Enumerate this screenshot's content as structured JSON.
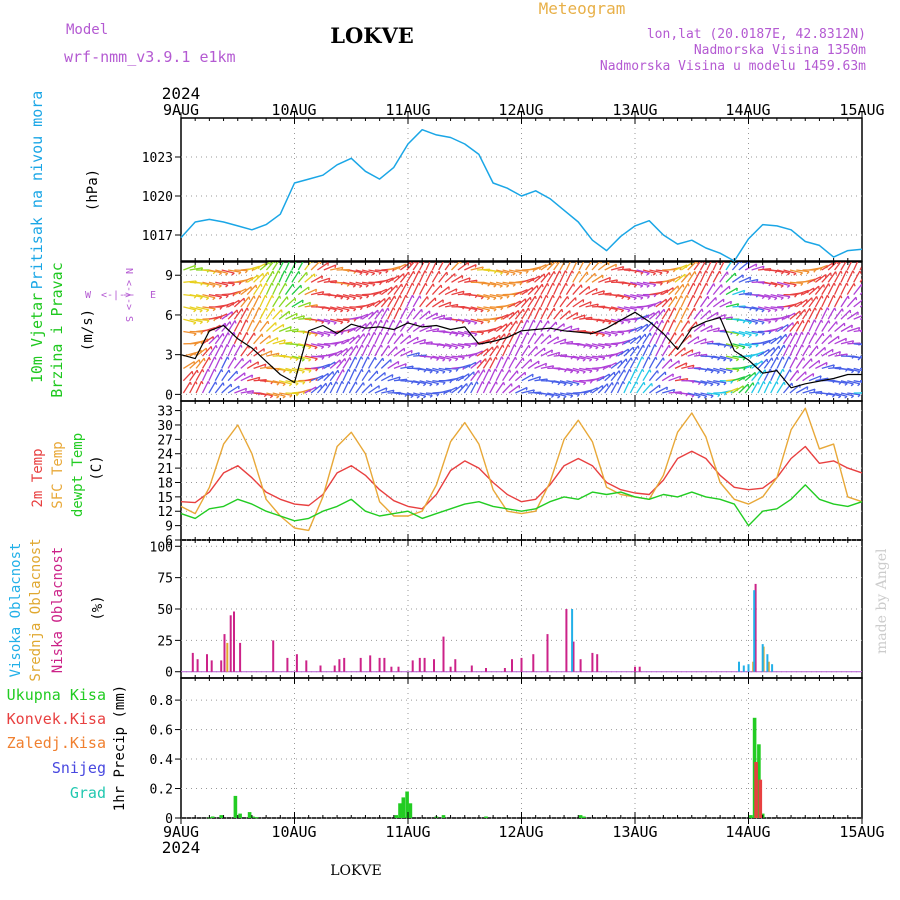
{
  "header": {
    "model_label": "Model",
    "model_name": "wrf-nmm_v3.9.1 e1km",
    "location": "LOKVE",
    "meteogram_label": "Meteogram",
    "lonlat": "lon,lat (20.0187E, 42.8312N)",
    "altitude": "Nadmorska Visina 1350m",
    "model_altitude": "Nadmorska Visina u modelu 1459.63m",
    "year": "2024",
    "footer_location": "LOKVE",
    "credit": "made by Angel"
  },
  "colors": {
    "pressure": "#1aa6e6",
    "wind_label": "#1ec81e",
    "compass": "#b45ad2",
    "temp2m": "#e84040",
    "sfc_temp": "#e8a838",
    "dewpoint": "#22cc22",
    "cloud_high": "#22b0e8",
    "cloud_mid": "#e0a830",
    "cloud_low": "#cc2288",
    "precip_total": "#22cc22",
    "precip_conv": "#e84040",
    "precip_freezing": "#f08030",
    "precip_snow": "#4848e0",
    "precip_hail": "#22c8b0",
    "header_purple": "#b45ad2",
    "meteogram_orange": "#e8b048",
    "credit_grey": "#cccccc"
  },
  "time_axis": {
    "top_labels": [
      "9AUG",
      "10AUG",
      "11AUG",
      "12AUG",
      "13AUG",
      "14AUG",
      "15AUG"
    ],
    "bottom_labels": [
      "9AUG",
      "10AUG",
      "11AUG",
      "12AUG",
      "13AUG",
      "14AUG",
      "15AUG"
    ]
  },
  "panels": {
    "pressure": {
      "label": "Pritisak na nivou mora",
      "unit": "(hPa)",
      "ticks": [
        "1017",
        "1020",
        "1023"
      ]
    },
    "wind": {
      "label1": "10m Vjetar",
      "label2": "Brzina i Pravac",
      "unit": "(m/s)",
      "ticks": [
        "0",
        "3",
        "6",
        "9"
      ],
      "compass_n": "N",
      "compass_s": "S",
      "compass_w": "W",
      "compass_e": "E",
      "compass_ns": "<-|->",
      "compass_we": "<-|->"
    },
    "temperature": {
      "label1": "2m Temp",
      "label2": "SFC Temp",
      "label3": "dewpt Temp",
      "unit": "(C)",
      "ticks": [
        "6",
        "9",
        "12",
        "15",
        "18",
        "21",
        "24",
        "27",
        "30",
        "33"
      ]
    },
    "clouds": {
      "label1": "Visoka Oblacnost",
      "label2": "Srednja Oblacnost",
      "label3": "Niska Oblacnost",
      "unit": "(%)",
      "ticks": [
        "0",
        "25",
        "50",
        "75",
        "100"
      ]
    },
    "precip": {
      "legend": [
        "Ukupna Kisa",
        "Konvek.Kisa",
        "Zaledj.Kisa",
        "Snijeg",
        "Grad"
      ],
      "axis_label": "1hr Precip (mm)",
      "ticks": [
        "0",
        "0.2",
        "0.4",
        "0.6",
        "0.8"
      ]
    }
  },
  "chart_data": [
    {
      "type": "line",
      "title": "Pritisak na nivou mora",
      "ylabel": "(hPa)",
      "x_hours": [
        0,
        3,
        6,
        9,
        12,
        15,
        18,
        21,
        24,
        27,
        30,
        33,
        36,
        39,
        42,
        45,
        48,
        51,
        54,
        57,
        60,
        63,
        66,
        69,
        72,
        75,
        78,
        81,
        84,
        87,
        90,
        93,
        96,
        99,
        102,
        105,
        108,
        111,
        114,
        117,
        120,
        123,
        126,
        129,
        132,
        135,
        138,
        141,
        144
      ],
      "ylim": [
        1015,
        1026
      ],
      "series": [
        {
          "values": [
            1016.8,
            1018.0,
            1018.2,
            1018.0,
            1017.7,
            1017.4,
            1017.8,
            1018.6,
            1021.0,
            1021.3,
            1021.6,
            1022.4,
            1022.9,
            1021.9,
            1021.3,
            1022.2,
            1024.0,
            1025.1,
            1024.7,
            1024.5,
            1024.0,
            1023.2,
            1021.0,
            1020.6,
            1020.0,
            1020.4,
            1019.8,
            1018.9,
            1018.0,
            1016.6,
            1015.8,
            1016.9,
            1017.7,
            1018.1,
            1017.0,
            1016.3,
            1016.6,
            1016.0,
            1015.6,
            1015.0,
            1016.7,
            1017.8,
            1017.7,
            1017.4,
            1016.5,
            1016.2,
            1015.3,
            1015.8,
            1015.9
          ]
        }
      ]
    },
    {
      "type": "line",
      "title": "10m Vjetar Brzina i Pravac",
      "ylabel": "(m/s)",
      "x_hours": [
        0,
        3,
        6,
        9,
        12,
        15,
        18,
        21,
        24,
        27,
        30,
        33,
        36,
        39,
        42,
        45,
        48,
        51,
        54,
        57,
        60,
        63,
        66,
        69,
        72,
        75,
        78,
        81,
        84,
        87,
        90,
        93,
        96,
        99,
        102,
        105,
        108,
        111,
        114,
        117,
        120,
        123,
        126,
        129,
        132,
        135,
        138,
        141,
        144
      ],
      "ylim": [
        -0.5,
        10
      ],
      "series": [
        {
          "values": [
            3.0,
            2.7,
            4.8,
            5.2,
            4.2,
            3.5,
            2.5,
            1.5,
            0.9,
            4.8,
            5.2,
            4.6,
            5.3,
            5.0,
            5.1,
            4.9,
            5.4,
            5.1,
            5.2,
            4.9,
            5.1,
            3.8,
            4.0,
            4.3,
            4.8,
            4.9,
            5.0,
            4.8,
            4.7,
            4.6,
            5.0,
            5.6,
            6.2,
            5.5,
            4.6,
            3.4,
            5.0,
            5.5,
            5.8,
            3.3,
            2.6,
            1.6,
            1.8,
            0.5,
            0.8,
            1.0,
            1.2,
            1.5,
            1.5
          ]
        }
      ]
    },
    {
      "type": "line",
      "title": "2m Temp / SFC Temp / dewpt Temp",
      "ylabel": "(C)",
      "x_hours": [
        0,
        3,
        6,
        9,
        12,
        15,
        18,
        21,
        24,
        27,
        30,
        33,
        36,
        39,
        42,
        45,
        48,
        51,
        54,
        57,
        60,
        63,
        66,
        69,
        72,
        75,
        78,
        81,
        84,
        87,
        90,
        93,
        96,
        99,
        102,
        105,
        108,
        111,
        114,
        117,
        120,
        123,
        126,
        129,
        132,
        135,
        138,
        141,
        144
      ],
      "ylim": [
        6,
        35
      ],
      "series": [
        {
          "name": "2m Temp",
          "values": [
            14.0,
            13.8,
            16.0,
            20.0,
            21.5,
            19.0,
            16.0,
            14.5,
            13.5,
            13.2,
            15.5,
            20.0,
            21.5,
            19.5,
            16.5,
            14.2,
            13.0,
            12.5,
            15.5,
            20.5,
            22.5,
            21.0,
            18.0,
            15.5,
            14.0,
            14.5,
            17.5,
            21.5,
            23.0,
            21.5,
            18.0,
            16.5,
            15.8,
            15.5,
            18.5,
            23.0,
            24.5,
            23.0,
            19.5,
            17.0,
            16.5,
            16.8,
            19.0,
            23.0,
            25.5,
            22.0,
            22.5,
            21.0,
            20.0
          ]
        },
        {
          "name": "SFC Temp",
          "values": [
            13.0,
            11.5,
            17.0,
            26.0,
            30.0,
            24.0,
            14.5,
            11.0,
            8.5,
            8.0,
            15.0,
            25.5,
            28.5,
            24.0,
            14.0,
            11.0,
            11.0,
            12.0,
            17.5,
            26.5,
            30.5,
            26.0,
            16.5,
            12.0,
            11.5,
            12.0,
            18.0,
            27.0,
            31.0,
            26.5,
            17.0,
            15.5,
            15.0,
            14.5,
            19.5,
            28.5,
            32.5,
            27.5,
            18.0,
            14.5,
            13.5,
            15.0,
            19.0,
            29.0,
            33.5,
            25.0,
            26.0,
            15.0,
            14.0
          ]
        },
        {
          "name": "dewpt Temp",
          "values": [
            11.5,
            10.5,
            12.5,
            13.0,
            14.5,
            13.5,
            12.0,
            11.0,
            10.0,
            10.5,
            12.0,
            13.0,
            14.5,
            12.0,
            11.0,
            11.5,
            12.0,
            10.5,
            11.5,
            12.5,
            13.5,
            14.0,
            13.0,
            12.5,
            12.0,
            12.5,
            14.0,
            15.0,
            14.5,
            16.0,
            15.5,
            16.0,
            15.0,
            14.5,
            15.5,
            15.0,
            16.0,
            15.0,
            14.5,
            13.5,
            9.0,
            12.0,
            12.5,
            14.5,
            17.5,
            14.5,
            13.5,
            13.0,
            14.0
          ]
        }
      ]
    },
    {
      "type": "bar",
      "title": "Visoka / Srednja / Niska Oblacnost",
      "ylabel": "(%)",
      "ylim": [
        -5,
        105
      ],
      "series": [
        {
          "name": "Niska Oblacnost",
          "x_hours": [
            2.5,
            3.5,
            5.5,
            6.5,
            8.5,
            9.2,
            10.5,
            11.2,
            12.5,
            19.5,
            22.5,
            24.5,
            26.5,
            29.5,
            32.5,
            33.5,
            34.5,
            38.0,
            40.0,
            42.0,
            43.0,
            44.5,
            46.0,
            49.0,
            50.5,
            51.5,
            53.5,
            55.5,
            57.0,
            58.0,
            61.5,
            64.5,
            68.5,
            70.0,
            72.0,
            74.5,
            77.5,
            81.5,
            83.0,
            84.5,
            87.0,
            88.0,
            96.0,
            97.0,
            121.5
          ],
          "values": [
            15,
            10,
            14,
            9,
            9,
            30,
            45,
            48,
            23,
            25,
            11,
            14,
            9,
            5,
            5,
            10,
            11,
            11,
            13,
            11,
            11,
            4,
            4,
            9,
            11,
            11,
            10,
            28,
            4,
            10,
            5,
            3,
            3,
            10,
            11,
            14,
            30,
            50,
            24,
            10,
            15,
            14,
            4,
            4,
            70
          ]
        },
        {
          "name": "Srednja Oblacnost",
          "x_hours": [
            9.8,
            121.0,
            123.2,
            124.3
          ],
          "values": [
            23,
            8,
            20,
            8
          ]
        },
        {
          "name": "Visoka Oblacnost",
          "x_hours": [
            82.7,
            118.0,
            119.0,
            120.0,
            121.2,
            123.0,
            124.0,
            125.0
          ],
          "values": [
            50,
            8,
            5,
            6,
            65,
            22,
            14,
            6
          ]
        }
      ]
    },
    {
      "type": "bar",
      "title": "1hr Precip",
      "ylabel": "1hr Precip (mm)",
      "ylim": [
        0,
        0.95
      ],
      "series": [
        {
          "name": "Ukupna Kisa",
          "x_hours": [
            6.0,
            6.7,
            8.5,
            11.5,
            12.5,
            14.5,
            15.2,
            16.0,
            45.5,
            46.3,
            47.0,
            47.8,
            48.5,
            54.0,
            55.5,
            64.5,
            84.5,
            85.2,
            120.5,
            121.3,
            122.2,
            123.0
          ],
          "values": [
            0.005,
            0.01,
            0.02,
            0.15,
            0.03,
            0.04,
            0.01,
            0.005,
            0.02,
            0.1,
            0.14,
            0.18,
            0.1,
            0.01,
            0.02,
            0.01,
            0.02,
            0.01,
            0.02,
            0.68,
            0.5,
            0.03
          ]
        },
        {
          "name": "Konvek.Kisa",
          "x_hours": [
            121.6,
            122.5
          ],
          "values": [
            0.38,
            0.26
          ]
        }
      ]
    }
  ]
}
